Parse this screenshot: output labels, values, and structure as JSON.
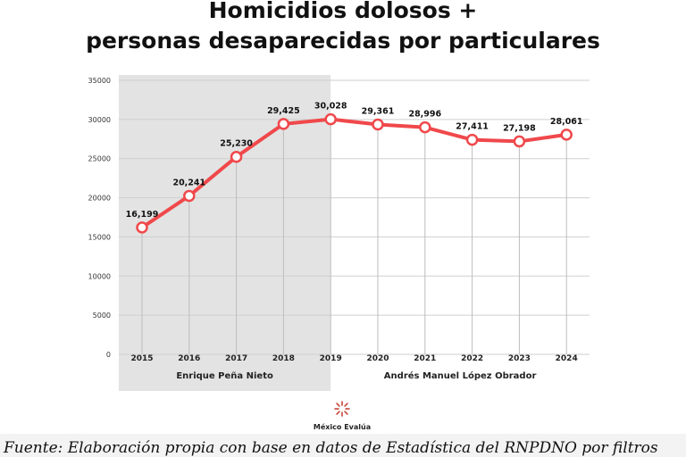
{
  "title_line1": "Homicidios dolosos +",
  "title_line2": "personas desaparecidas por particulares",
  "chart_data": {
    "type": "line",
    "title": "Homicidios dolosos + personas desaparecidas por particulares",
    "x": [
      "2015",
      "2016",
      "2017",
      "2018",
      "2019",
      "2020",
      "2021",
      "2022",
      "2023",
      "2024"
    ],
    "values": [
      16199,
      20241,
      25230,
      29425,
      30028,
      29361,
      28996,
      27411,
      27198,
      28061
    ],
    "data_labels": [
      "16,199",
      "20,241",
      "25,230",
      "29,425",
      "30,028",
      "29,361",
      "28,996",
      "27,411",
      "27,198",
      "28,061"
    ],
    "y_ticks": [
      0,
      5000,
      10000,
      15000,
      20000,
      25000,
      30000,
      35000
    ],
    "ylim": [
      0,
      35000
    ],
    "grid": true,
    "line_color": "#f0484b",
    "periods": [
      {
        "label": "Enrique Peña Nieto",
        "from": "2015",
        "to": "2019",
        "shaded": true,
        "color": "#e3e3e3"
      },
      {
        "label": "Andrés Manuel López Obrador",
        "from": "2019",
        "to": "2024",
        "shaded": false
      }
    ]
  },
  "logo": {
    "name": "México Evalúa",
    "color": "#c0392b"
  },
  "caption": "Fuente: Elaboración propia con base en datos de Estadística del RNPDNO por filtros"
}
